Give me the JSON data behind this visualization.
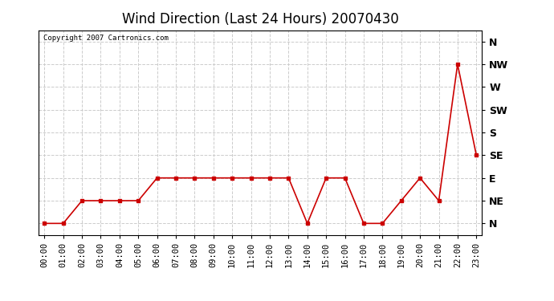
{
  "title": "Wind Direction (Last 24 Hours) 20070430",
  "copyright_text": "Copyright 2007 Cartronics.com",
  "x_labels": [
    "00:00",
    "01:00",
    "02:00",
    "03:00",
    "04:00",
    "05:00",
    "06:00",
    "07:00",
    "08:00",
    "09:00",
    "10:00",
    "11:00",
    "12:00",
    "13:00",
    "14:00",
    "15:00",
    "16:00",
    "17:00",
    "18:00",
    "19:00",
    "20:00",
    "21:00",
    "22:00",
    "23:00"
  ],
  "y_labels": [
    "N",
    "NE",
    "E",
    "SE",
    "S",
    "SW",
    "W",
    "NW",
    "N"
  ],
  "y_values": [
    0,
    1,
    2,
    3,
    4,
    5,
    6,
    7,
    8
  ],
  "wind_data": [
    0,
    0,
    1,
    1,
    1,
    1,
    2,
    2,
    2,
    2,
    2,
    2,
    2,
    2,
    0,
    2,
    2,
    0,
    0,
    1,
    2,
    1,
    7,
    3
  ],
  "line_color": "#cc0000",
  "marker": "s",
  "marker_size": 2.5,
  "background_color": "#ffffff",
  "plot_bg_color": "#ffffff",
  "grid_color": "#cccccc",
  "title_fontsize": 12,
  "tick_fontsize": 7.5,
  "ylabel_fontsize": 9
}
